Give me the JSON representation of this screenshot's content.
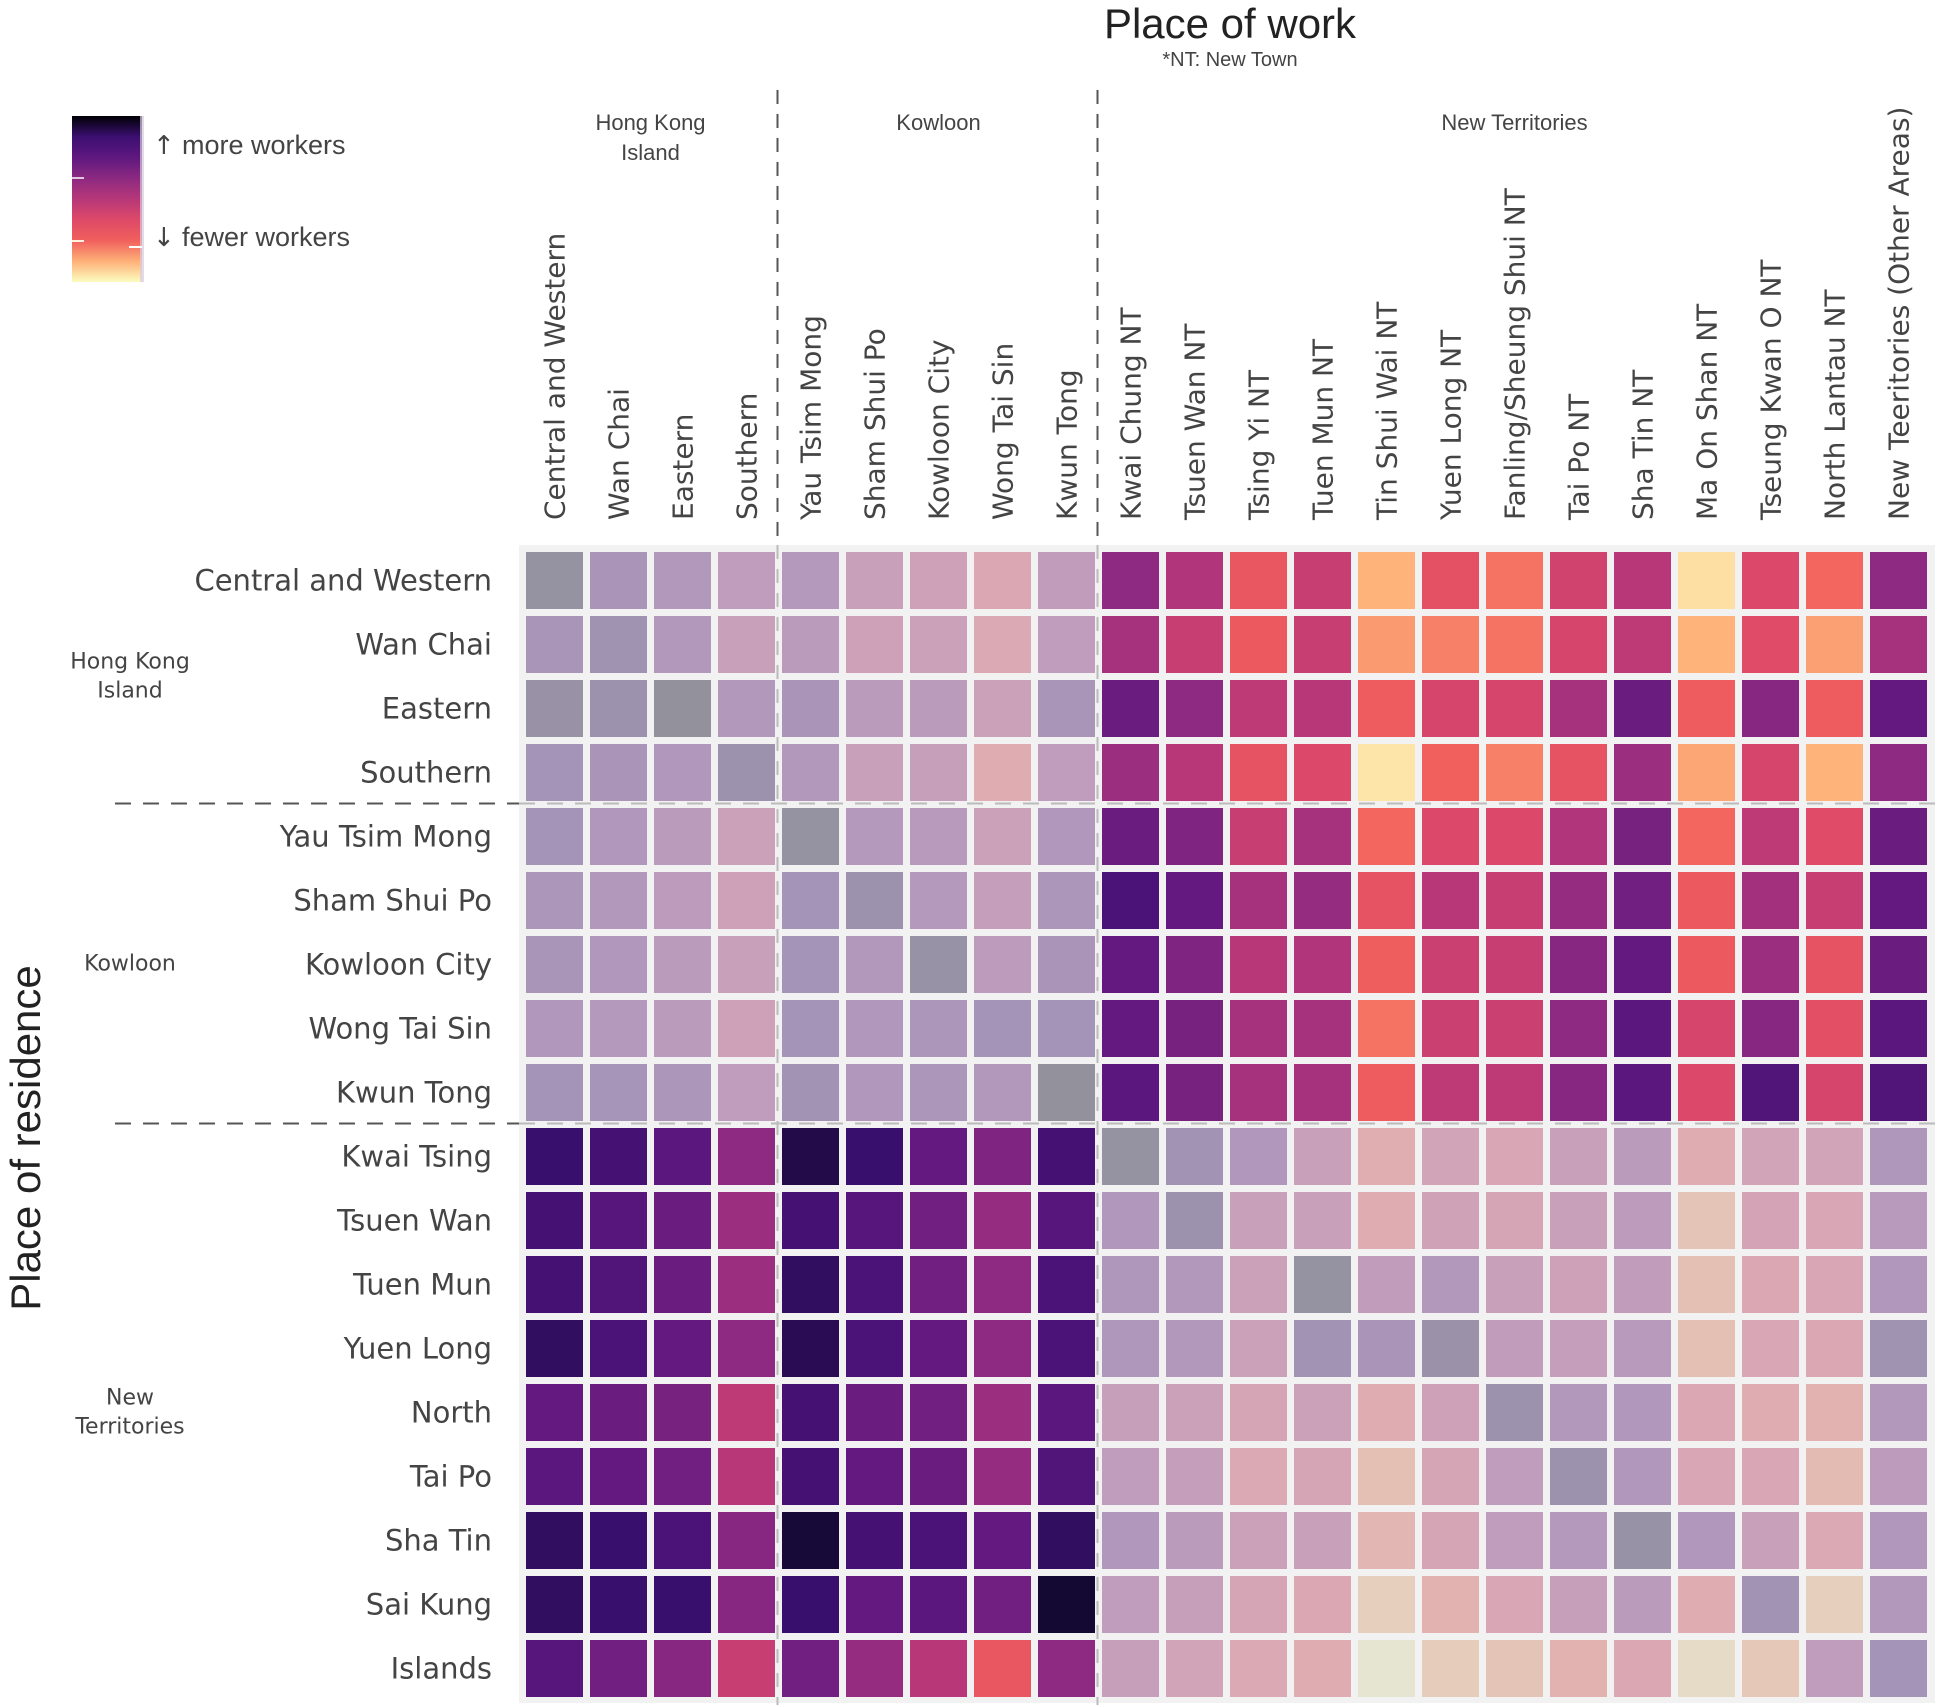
{
  "chart_data": {
    "type": "heatmap",
    "title": "Place of work",
    "subtitle": "*NT: New Town",
    "xlabel": "Place of work",
    "ylabel": "Place of residence",
    "colormap": "magma_r",
    "legend": {
      "placement": "top-left",
      "high_label": "more workers",
      "low_label": "fewer workers",
      "high_arrow": "↑",
      "low_arrow": "↓"
    },
    "value_scale": "relative intensity 0 (fewer) to 1 (more), estimated from colour",
    "x_groups": [
      {
        "name": "Hong Kong\nIsland",
        "lines": [
          "Hong Kong",
          "Island"
        ],
        "count": 4
      },
      {
        "name": "Kowloon",
        "lines": [
          "Kowloon"
        ],
        "count": 5
      },
      {
        "name": "New Territories",
        "lines": [
          "New Territories"
        ],
        "count": 13
      }
    ],
    "y_groups": [
      {
        "name": "Hong Kong Island",
        "lines": [
          "Hong Kong",
          "Island"
        ],
        "count": 4
      },
      {
        "name": "Kowloon",
        "lines": [
          "Kowloon"
        ],
        "count": 5
      },
      {
        "name": "New Territories",
        "lines": [
          "New",
          "Territories"
        ],
        "count": 9
      }
    ],
    "x_categories": [
      "Central and Western",
      "Wan Chai",
      "Eastern",
      "Southern",
      "Yau Tsim Mong",
      "Sham Shui Po",
      "Kowloon City",
      "Wong Tai Sin",
      "Kwun Tong",
      "Kwai Chung NT",
      "Tsuen Wan NT",
      "Tsing Yi NT",
      "Tuen Mun NT",
      "Tin Shui Wai NT",
      "Yuen Long NT",
      "Fanling/Sheung Shui NT",
      "Tai Po NT",
      "Sha Tin NT",
      "Ma On Shan NT",
      "Tseung Kwan O NT",
      "North Lantau NT",
      "New Teeritories (Other Areas)"
    ],
    "y_categories": [
      "Central and Western",
      "Wan Chai",
      "Eastern",
      "Southern",
      "Yau Tsim Mong",
      "Sham Shui Po",
      "Kowloon City",
      "Wong Tai Sin",
      "Kwun Tong",
      "Kwai Tsing",
      "Tsuen Wan",
      "Tuen Mun",
      "Yuen Long",
      "North",
      "Tai Po",
      "Sha Tin",
      "Sai Kung",
      "Islands"
    ],
    "faded_blocks": [
      {
        "rows": [
          0,
          8
        ],
        "cols": [
          0,
          8
        ]
      },
      {
        "rows": [
          9,
          17
        ],
        "cols": [
          9,
          21
        ]
      }
    ],
    "values": [
      [
        0.98,
        0.8,
        0.72,
        0.62,
        0.7,
        0.55,
        0.5,
        0.38,
        0.6,
        0.62,
        0.52,
        0.3,
        0.45,
        0.12,
        0.33,
        0.22,
        0.42,
        0.5,
        0.05,
        0.38,
        0.24,
        0.62
      ],
      [
        0.82,
        0.9,
        0.72,
        0.55,
        0.66,
        0.5,
        0.52,
        0.36,
        0.62,
        0.55,
        0.45,
        0.28,
        0.45,
        0.16,
        0.2,
        0.22,
        0.4,
        0.48,
        0.12,
        0.36,
        0.15,
        0.55
      ],
      [
        0.95,
        0.92,
        1.0,
        0.72,
        0.8,
        0.66,
        0.65,
        0.52,
        0.82,
        0.72,
        0.62,
        0.48,
        0.5,
        0.27,
        0.4,
        0.4,
        0.55,
        0.72,
        0.27,
        0.64,
        0.27,
        0.74
      ],
      [
        0.86,
        0.8,
        0.74,
        0.92,
        0.72,
        0.55,
        0.56,
        0.3,
        0.62,
        0.58,
        0.5,
        0.32,
        0.38,
        0.04,
        0.25,
        0.2,
        0.32,
        0.58,
        0.14,
        0.4,
        0.12,
        0.62
      ],
      [
        0.86,
        0.74,
        0.66,
        0.52,
        0.98,
        0.7,
        0.68,
        0.52,
        0.74,
        0.72,
        0.66,
        0.45,
        0.55,
        0.24,
        0.38,
        0.38,
        0.52,
        0.68,
        0.24,
        0.48,
        0.36,
        0.72
      ],
      [
        0.78,
        0.72,
        0.64,
        0.5,
        0.86,
        0.92,
        0.7,
        0.58,
        0.78,
        0.82,
        0.74,
        0.55,
        0.6,
        0.32,
        0.5,
        0.45,
        0.6,
        0.7,
        0.28,
        0.56,
        0.45,
        0.74
      ],
      [
        0.82,
        0.74,
        0.66,
        0.55,
        0.86,
        0.72,
        0.96,
        0.64,
        0.8,
        0.74,
        0.66,
        0.5,
        0.52,
        0.26,
        0.44,
        0.45,
        0.64,
        0.74,
        0.28,
        0.58,
        0.32,
        0.72
      ],
      [
        0.74,
        0.7,
        0.66,
        0.5,
        0.86,
        0.74,
        0.78,
        0.86,
        0.86,
        0.74,
        0.68,
        0.55,
        0.55,
        0.22,
        0.44,
        0.44,
        0.62,
        0.76,
        0.4,
        0.64,
        0.34,
        0.76
      ],
      [
        0.86,
        0.84,
        0.78,
        0.62,
        0.88,
        0.74,
        0.78,
        0.72,
        1.0,
        0.76,
        0.68,
        0.55,
        0.55,
        0.27,
        0.48,
        0.48,
        0.64,
        0.76,
        0.38,
        0.8,
        0.4,
        0.8
      ],
      [
        0.88,
        0.84,
        0.76,
        0.62,
        0.94,
        0.88,
        0.74,
        0.66,
        0.84,
        0.98,
        0.88,
        0.74,
        0.55,
        0.28,
        0.46,
        0.4,
        0.55,
        0.66,
        0.3,
        0.46,
        0.46,
        0.76
      ],
      [
        0.84,
        0.78,
        0.72,
        0.58,
        0.84,
        0.78,
        0.7,
        0.6,
        0.78,
        0.74,
        0.92,
        0.55,
        0.55,
        0.3,
        0.48,
        0.42,
        0.55,
        0.64,
        0.16,
        0.44,
        0.4,
        0.68
      ],
      [
        0.84,
        0.8,
        0.72,
        0.58,
        0.9,
        0.82,
        0.7,
        0.62,
        0.82,
        0.76,
        0.72,
        0.52,
        0.98,
        0.6,
        0.72,
        0.55,
        0.5,
        0.6,
        0.18,
        0.38,
        0.4,
        0.74
      ],
      [
        0.9,
        0.82,
        0.74,
        0.62,
        0.92,
        0.82,
        0.74,
        0.62,
        0.82,
        0.76,
        0.72,
        0.52,
        0.88,
        0.8,
        0.94,
        0.6,
        0.58,
        0.68,
        0.18,
        0.4,
        0.38,
        0.9
      ],
      [
        0.74,
        0.72,
        0.68,
        0.48,
        0.84,
        0.72,
        0.7,
        0.58,
        0.76,
        0.56,
        0.52,
        0.42,
        0.52,
        0.3,
        0.5,
        0.92,
        0.72,
        0.74,
        0.38,
        0.3,
        0.24,
        0.72
      ],
      [
        0.76,
        0.74,
        0.7,
        0.5,
        0.84,
        0.74,
        0.72,
        0.6,
        0.8,
        0.62,
        0.58,
        0.36,
        0.42,
        0.18,
        0.42,
        0.62,
        0.92,
        0.74,
        0.4,
        0.4,
        0.2,
        0.64
      ],
      [
        0.9,
        0.88,
        0.82,
        0.64,
        0.97,
        0.84,
        0.82,
        0.74,
        0.9,
        0.74,
        0.66,
        0.52,
        0.54,
        0.22,
        0.42,
        0.62,
        0.7,
        0.96,
        0.74,
        0.54,
        0.36,
        0.74
      ],
      [
        0.9,
        0.88,
        0.88,
        0.64,
        0.88,
        0.74,
        0.76,
        0.7,
        0.98,
        0.62,
        0.56,
        0.42,
        0.38,
        0.1,
        0.24,
        0.4,
        0.56,
        0.66,
        0.3,
        0.88,
        0.1,
        0.72
      ],
      [
        0.78,
        0.7,
        0.64,
        0.45,
        0.7,
        0.6,
        0.5,
        0.3,
        0.62,
        0.56,
        0.46,
        0.36,
        0.3,
        0.0,
        0.12,
        0.16,
        0.24,
        0.38,
        0.05,
        0.14,
        0.62,
        0.86
      ]
    ]
  }
}
